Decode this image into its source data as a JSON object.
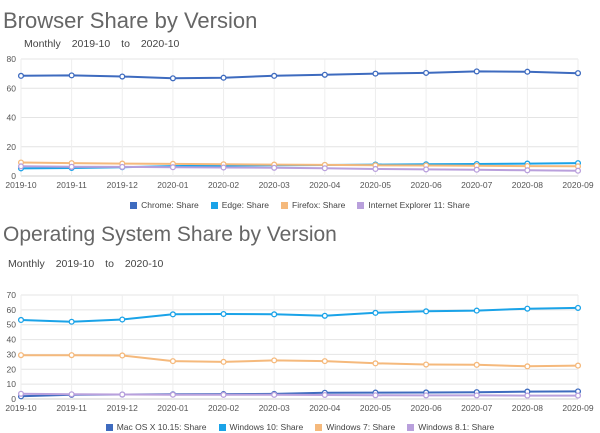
{
  "chart_data": [
    {
      "id": "browser",
      "type": "line",
      "title": "Browser Share by Version",
      "range_label": "Monthly",
      "range_from": "2019-10",
      "range_to_word": "to",
      "range_to": "2020-10",
      "categories": [
        "2019-10",
        "2019-11",
        "2019-12",
        "2020-01",
        "2020-02",
        "2020-03",
        "2020-04",
        "2020-05",
        "2020-06",
        "2020-07",
        "2020-08",
        "2020-09"
      ],
      "ylim": [
        0,
        80
      ],
      "yticks": [
        "0",
        "20",
        "40",
        "60",
        "80"
      ],
      "grid": true,
      "legend_position": "bottom",
      "series": [
        {
          "name": "Chrome: Share",
          "color": "#3e6bbf",
          "values": [
            68.5,
            68.8,
            68.0,
            66.8,
            67.2,
            68.5,
            69.2,
            70.0,
            70.5,
            71.5,
            71.3,
            70.3
          ]
        },
        {
          "name": "Edge: Share",
          "color": "#1aa3e8",
          "values": [
            5.2,
            5.5,
            6.0,
            6.8,
            7.2,
            7.3,
            7.5,
            7.8,
            8.0,
            8.2,
            8.5,
            8.8
          ]
        },
        {
          "name": "Firefox: Share",
          "color": "#f5b97c",
          "values": [
            9.2,
            8.8,
            8.5,
            8.3,
            8.0,
            7.8,
            7.6,
            7.3,
            7.2,
            7.0,
            6.8,
            6.6
          ]
        },
        {
          "name": "Internet Explorer 11: Share",
          "color": "#b9a0dc",
          "values": [
            6.6,
            6.3,
            6.2,
            6.0,
            5.8,
            5.6,
            5.3,
            4.8,
            4.5,
            4.3,
            3.9,
            3.6
          ]
        }
      ]
    },
    {
      "id": "os",
      "type": "line",
      "title": "Operating System Share by Version",
      "range_label": "Monthly",
      "range_from": "2019-10",
      "range_to_word": "to",
      "range_to": "2020-10",
      "categories": [
        "2019-10",
        "2019-11",
        "2019-12",
        "2020-01",
        "2020-02",
        "2020-03",
        "2020-04",
        "2020-05",
        "2020-06",
        "2020-07",
        "2020-08",
        "2020-09"
      ],
      "ylim": [
        0,
        70
      ],
      "yticks": [
        "0",
        "10",
        "20",
        "30",
        "40",
        "50",
        "60",
        "70"
      ],
      "grid": true,
      "legend_position": "bottom",
      "series": [
        {
          "name": "Mac OS X 10.15: Share",
          "color": "#3e6bbf",
          "values": [
            1.8,
            2.8,
            3.0,
            3.2,
            3.3,
            3.4,
            4.2,
            4.3,
            4.4,
            4.6,
            5.0,
            5.1
          ]
        },
        {
          "name": "Windows 10: Share",
          "color": "#1aa3e8",
          "values": [
            53.2,
            52.0,
            53.5,
            57.0,
            57.2,
            57.0,
            56.0,
            58.0,
            59.0,
            59.5,
            60.8,
            61.3
          ]
        },
        {
          "name": "Windows 7: Share",
          "color": "#f5b97c",
          "values": [
            29.5,
            29.5,
            29.3,
            25.5,
            25.0,
            26.0,
            25.5,
            24.0,
            23.2,
            23.0,
            22.0,
            22.5
          ]
        },
        {
          "name": "Windows 8.1: Share",
          "color": "#b9a0dc",
          "values": [
            3.5,
            3.2,
            3.0,
            2.9,
            2.8,
            2.8,
            2.7,
            2.5,
            2.4,
            2.4,
            2.3,
            2.3
          ]
        }
      ]
    }
  ]
}
